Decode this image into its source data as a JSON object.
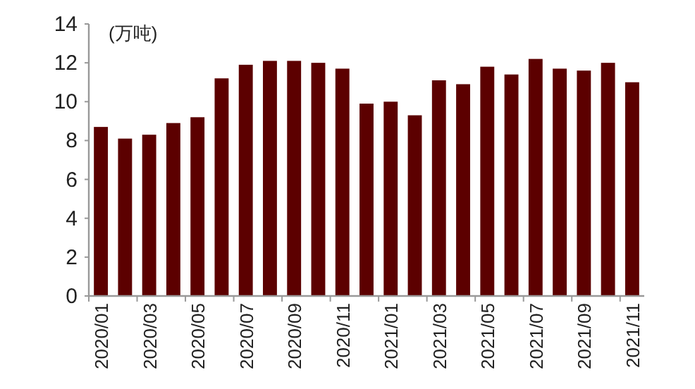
{
  "chart_data": {
    "type": "bar",
    "ylabel": "(万吨)",
    "categories": [
      "2020/01",
      null,
      "2020/03",
      null,
      "2020/05",
      null,
      "2020/07",
      null,
      "2020/09",
      null,
      "2020/11",
      null,
      "2021/01",
      null,
      "2021/03",
      null,
      "2021/05",
      null,
      "2021/07",
      null,
      "2021/09",
      null,
      "2021/11"
    ],
    "values": [
      8.7,
      8.1,
      8.3,
      8.9,
      9.2,
      11.2,
      11.9,
      12.1,
      12.1,
      12.0,
      11.7,
      9.9,
      10.0,
      9.3,
      11.1,
      10.9,
      11.8,
      11.4,
      12.2,
      11.7,
      11.6,
      12.0,
      11.0
    ],
    "color": "#5c0000",
    "ylim": [
      0,
      14
    ],
    "yticks": [
      0,
      2,
      4,
      6,
      8,
      10,
      12,
      14
    ],
    "grid": false
  }
}
